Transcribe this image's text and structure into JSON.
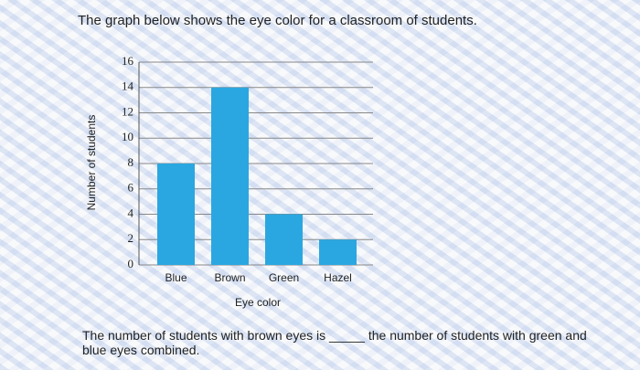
{
  "heading": "The graph below shows the eye color for a classroom of students.",
  "chart_data": {
    "type": "bar",
    "xlabel": "Eye color",
    "ylabel": "Number of students",
    "categories": [
      "Blue",
      "Brown",
      "Green",
      "Hazel"
    ],
    "values": [
      8,
      14,
      4,
      2
    ],
    "color": "#2aa7e0",
    "ylim": [
      0,
      16
    ],
    "yticks": [
      0,
      2,
      4,
      6,
      8,
      10,
      12,
      14,
      16
    ],
    "grid": true
  },
  "question": "The number of students with brown eyes is _____ the number of students with green and blue eyes combined."
}
